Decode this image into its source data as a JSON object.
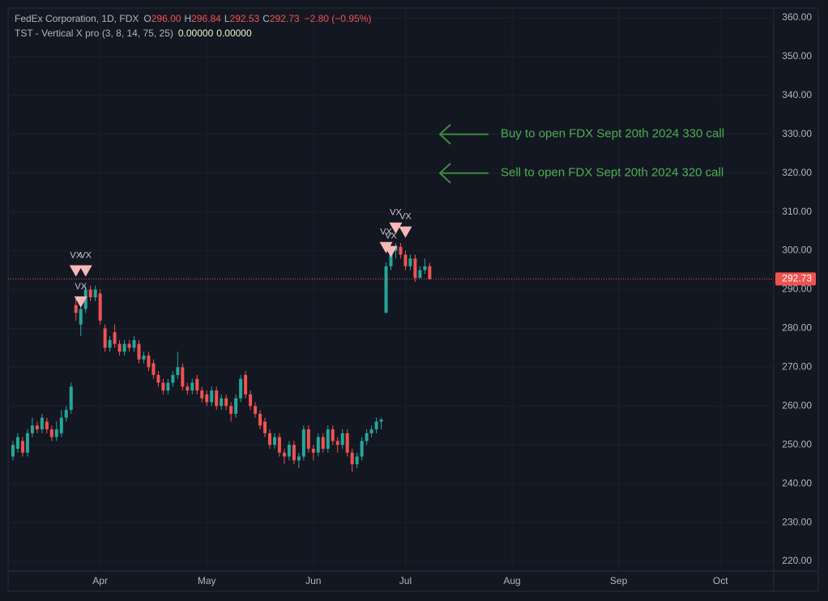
{
  "chart_data": {
    "type": "candlestick",
    "header": {
      "title": "FedEx Corporation, 1D, FDX",
      "ohlc_letters": [
        "O",
        "H",
        "L",
        "C"
      ],
      "ohlc_labels": [
        "296.00",
        "296.84",
        "292.53",
        "292.73"
      ],
      "change": "−2.80 (−0.95%)"
    },
    "indicator": {
      "name": "TST - Vertical X pro (3, 8, 14, 75, 25)",
      "values": [
        "0.00000",
        "0.00000"
      ]
    },
    "up_color": "#26a69a",
    "down_color": "#ef5350",
    "open": [
      247,
      249,
      251,
      248,
      253,
      255,
      254,
      256,
      254,
      252,
      253,
      257,
      259,
      286,
      281,
      285,
      290,
      288,
      289,
      280,
      275,
      279,
      276,
      274,
      276,
      275,
      276,
      272,
      273,
      271,
      268,
      266,
      264,
      266,
      268,
      270,
      265,
      264,
      267,
      264,
      263,
      261,
      264,
      260,
      262,
      260,
      258,
      262,
      268,
      263,
      260,
      258,
      256,
      253,
      250,
      252,
      248,
      247,
      250,
      246,
      247,
      254,
      249,
      248,
      252,
      249,
      254,
      251,
      250,
      253,
      248,
      245,
      247,
      251,
      253,
      254,
      256,
      284,
      296,
      300,
      301,
      299,
      296,
      298,
      293,
      295,
      296
    ],
    "high": [
      251,
      253,
      252,
      254,
      257,
      256,
      258,
      257,
      255,
      256,
      259,
      260,
      266,
      288,
      288,
      291,
      291,
      291,
      290,
      281,
      278,
      281,
      277,
      277,
      277,
      278,
      277,
      274,
      274,
      272,
      269,
      267,
      267,
      269,
      274,
      271,
      266,
      267,
      268,
      265,
      264,
      265,
      265,
      263,
      263,
      261,
      263,
      268,
      269,
      264,
      261,
      259,
      257,
      254,
      253,
      253,
      249,
      251,
      251,
      248,
      255,
      255,
      250,
      253,
      253,
      255,
      255,
      252,
      254,
      254,
      249,
      248,
      252,
      254,
      255,
      257,
      257,
      297,
      301,
      302,
      302,
      300,
      299,
      299,
      296,
      298,
      296.84
    ],
    "low": [
      246,
      248,
      247,
      247,
      252,
      253,
      253,
      253,
      251,
      251,
      252,
      256,
      258,
      282,
      278,
      284,
      287,
      287,
      281,
      274,
      274,
      275,
      273,
      273,
      274,
      274,
      271,
      271,
      269,
      267,
      265,
      263,
      263,
      265,
      267,
      264,
      263,
      263,
      263,
      261,
      260,
      260,
      259,
      259,
      259,
      256,
      257,
      261,
      262,
      259,
      257,
      254,
      252,
      249,
      249,
      247,
      245,
      246,
      245,
      244,
      246,
      248,
      246,
      247,
      248,
      248,
      250,
      248,
      249,
      247,
      243,
      244,
      246,
      250,
      252,
      253,
      254,
      284,
      295,
      298,
      298,
      295,
      295,
      292,
      293,
      294,
      292.53
    ],
    "close": [
      250,
      252,
      248,
      253,
      255,
      254,
      257,
      254,
      252,
      254,
      257,
      259,
      265,
      284,
      285,
      290,
      288,
      290,
      282,
      275,
      277,
      276,
      274,
      276,
      275,
      277,
      272,
      273,
      270,
      268,
      266,
      264,
      266,
      268,
      270,
      265,
      264,
      266,
      264,
      262,
      261,
      264,
      260,
      262,
      260,
      258,
      262,
      267,
      263,
      260,
      258,
      255,
      253,
      250,
      252,
      248,
      247,
      250,
      246,
      247,
      254,
      249,
      248,
      252,
      249,
      254,
      251,
      250,
      253,
      248,
      245,
      247,
      251,
      253,
      254,
      256,
      256.5,
      296,
      300,
      301,
      299,
      296,
      298,
      293,
      295,
      296,
      292.73
    ],
    "xlim": [
      -1,
      157
    ],
    "xticks": [
      {
        "value": 18,
        "label": "Apr"
      },
      {
        "value": 40,
        "label": "May"
      },
      {
        "value": 62,
        "label": "Jun"
      },
      {
        "value": 81,
        "label": "Jul"
      },
      {
        "value": 103,
        "label": "Aug"
      },
      {
        "value": 125,
        "label": "Sep"
      },
      {
        "value": 146,
        "label": "Oct"
      }
    ],
    "ylim": [
      217.5,
      362.5
    ],
    "yticks": [
      {
        "value": 220,
        "label": "220.00"
      },
      {
        "value": 230,
        "label": "230.00"
      },
      {
        "value": 240,
        "label": "240.00"
      },
      {
        "value": 250,
        "label": "250.00"
      },
      {
        "value": 260,
        "label": "260.00"
      },
      {
        "value": 270,
        "label": "270.00"
      },
      {
        "value": 280,
        "label": "280.00"
      },
      {
        "value": 290,
        "label": "290.00"
      },
      {
        "value": 300,
        "label": "300.00"
      },
      {
        "value": 310,
        "label": "310.00"
      },
      {
        "value": 320,
        "label": "320.00"
      },
      {
        "value": 330,
        "label": "330.00"
      },
      {
        "value": 340,
        "label": "340.00"
      },
      {
        "value": 350,
        "label": "350.00"
      },
      {
        "value": 360,
        "label": "360.00"
      }
    ],
    "grid": true,
    "last_price": 292.73,
    "last_price_label": "292.73",
    "markers": [
      {
        "text": "VX",
        "index": 13,
        "price": 295
      },
      {
        "text": "VX",
        "index": 15,
        "price": 295
      },
      {
        "text": "VX",
        "index": 14,
        "price": 287
      },
      {
        "text": "VX",
        "index": 77,
        "price": 301
      },
      {
        "text": "VX",
        "index": 78,
        "price": 300
      },
      {
        "text": "VX",
        "index": 79,
        "price": 306
      },
      {
        "text": "VX",
        "index": 81,
        "price": 305
      }
    ],
    "annotations": [
      {
        "text": "Buy to open FDX Sept 20th 2024 330 call",
        "price": 330
      },
      {
        "text": "Sell to open FDX Sept 20th 2024 320 call",
        "price": 320
      }
    ]
  }
}
